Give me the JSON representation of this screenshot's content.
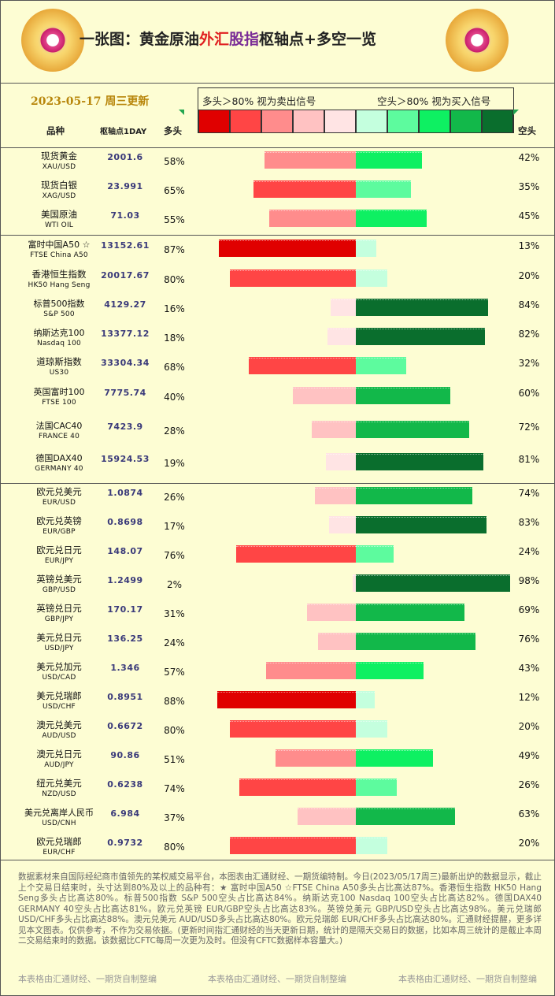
{
  "header": {
    "title_parts": [
      "一张图：黄金原油",
      "外汇",
      "股指",
      "枢轴点+多空一览"
    ],
    "date": "2023-05-17 周三更新",
    "legend_left": "多头＞80% 视为卖出信号",
    "legend_right": "空头＞80% 视为买入信号"
  },
  "columns": {
    "name": "品种",
    "pivot": "枢轴点1DAY",
    "long": "多头",
    "short": "空头"
  },
  "colors": {
    "long_scale": [
      "#e00000",
      "#ff4545",
      "#ff8c8c",
      "#ffc2c2",
      "#ffe4e4"
    ],
    "short_scale": [
      "#c4ffde",
      "#5dfb9e",
      "#0ef062",
      "#12b84a",
      "#0a6e2d"
    ],
    "background": "#fdfdd3"
  },
  "chart_data": {
    "type": "bar",
    "rows": [
      {
        "name": "现货黄金",
        "code": "XAU/USD",
        "pivot": "2001.6",
        "long": 58,
        "short": 42
      },
      {
        "name": "现货白银",
        "code": "XAG/USD",
        "pivot": "23.991",
        "long": 65,
        "short": 35
      },
      {
        "name": "美国原油",
        "code": "WTI OIL",
        "pivot": "71.03",
        "long": 55,
        "short": 45
      },
      {
        "name": "富时中国A50 ☆",
        "code": "FTSE China A50",
        "pivot": "13152.61",
        "long": 87,
        "short": 13
      },
      {
        "name": "香港恒生指数",
        "code": "HK50 Hang Seng",
        "pivot": "20017.67",
        "long": 80,
        "short": 20
      },
      {
        "name": "标普500指数",
        "code": "S&P 500",
        "pivot": "4129.27",
        "long": 16,
        "short": 84
      },
      {
        "name": "纳斯达克100",
        "code": "Nasdaq 100",
        "pivot": "13377.12",
        "long": 18,
        "short": 82
      },
      {
        "name": "道琼斯指数",
        "code": "US30",
        "pivot": "33304.34",
        "long": 68,
        "short": 32
      },
      {
        "name": "英国富时100",
        "code": "FTSE 100",
        "pivot": "7775.74",
        "long": 40,
        "short": 60
      },
      {
        "name": "法国CAC40",
        "code": "FRANCE 40",
        "pivot": "7423.9",
        "long": 28,
        "short": 72
      },
      {
        "name": "德国DAX40",
        "code": "GERMANY 40",
        "pivot": "15924.53",
        "long": 19,
        "short": 81
      },
      {
        "name": "欧元兑美元",
        "code": "EUR/USD",
        "pivot": "1.0874",
        "long": 26,
        "short": 74
      },
      {
        "name": "欧元兑英镑",
        "code": "EUR/GBP",
        "pivot": "0.8698",
        "long": 17,
        "short": 83
      },
      {
        "name": "欧元兑日元",
        "code": "EUR/JPY",
        "pivot": "148.07",
        "long": 76,
        "short": 24
      },
      {
        "name": "英镑兑美元",
        "code": "GBP/USD",
        "pivot": "1.2499",
        "long": 2,
        "short": 98
      },
      {
        "name": "英镑兑日元",
        "code": "GBP/JPY",
        "pivot": "170.17",
        "long": 31,
        "short": 69
      },
      {
        "name": "美元兑日元",
        "code": "USD/JPY",
        "pivot": "136.25",
        "long": 24,
        "short": 76
      },
      {
        "name": "美元兑加元",
        "code": "USD/CAD",
        "pivot": "1.346",
        "long": 57,
        "short": 43
      },
      {
        "name": "美元兑瑞郎",
        "code": "USD/CHF",
        "pivot": "0.8951",
        "long": 88,
        "short": 12
      },
      {
        "name": "澳元兑美元",
        "code": "AUD/USD",
        "pivot": "0.6672",
        "long": 80,
        "short": 20
      },
      {
        "name": "澳元兑日元",
        "code": "AUD/JPY",
        "pivot": "90.86",
        "long": 51,
        "short": 49
      },
      {
        "name": "纽元兑美元",
        "code": "NZD/USD",
        "pivot": "0.6238",
        "long": 74,
        "short": 26
      },
      {
        "name": "美元兑离岸人民币",
        "code": "USD/CNH",
        "pivot": "6.984",
        "long": 37,
        "short": 63
      },
      {
        "name": "欧元兑瑞郎",
        "code": "EUR/CHF",
        "pivot": "0.9732",
        "long": 80,
        "short": 20
      }
    ]
  },
  "footer": {
    "note": "数据素材来自国际经纪商市值领先的某权威交易平台，本图表由汇通财经、一期货编特制。今日(2023/05/17周三)最新出炉的数据显示，截止上个交易日结束时，头寸达到80%及以上的品种有：★ 富时中国A50 ☆FTSE China A50多头占比高达87%。香港恒生指数 HK50 Hang Seng多头占比高达80%。标普500指数 S&P 500空头占比高达84%。纳斯达克100 Nasdaq 100空头占比高达82%。德国DAX40 GERMANY 40空头占比高达81%。欧元兑英镑 EUR/GBP空头占比高达83%。英镑兑美元 GBP/USD空头占比高达98%。美元兑瑞郎 USD/CHF多头占比高达88%。澳元兑美元 AUD/USD多头占比高达80%。欧元兑瑞郎 EUR/CHF多头占比高达80%。汇通财经提醒，更多详见本文图表。仅供参考，不作为交易依据。(更新时间指汇通财经的当天更新日期，统计的是隔天交易日的数据，比如本周三统计的是截止本周二交易结束时的数据。该数据比CFTC每周一次更为及时。但没有CFTC数据样本容量大。)",
    "credit": "本表格由汇通财经、一期货自制整编"
  }
}
